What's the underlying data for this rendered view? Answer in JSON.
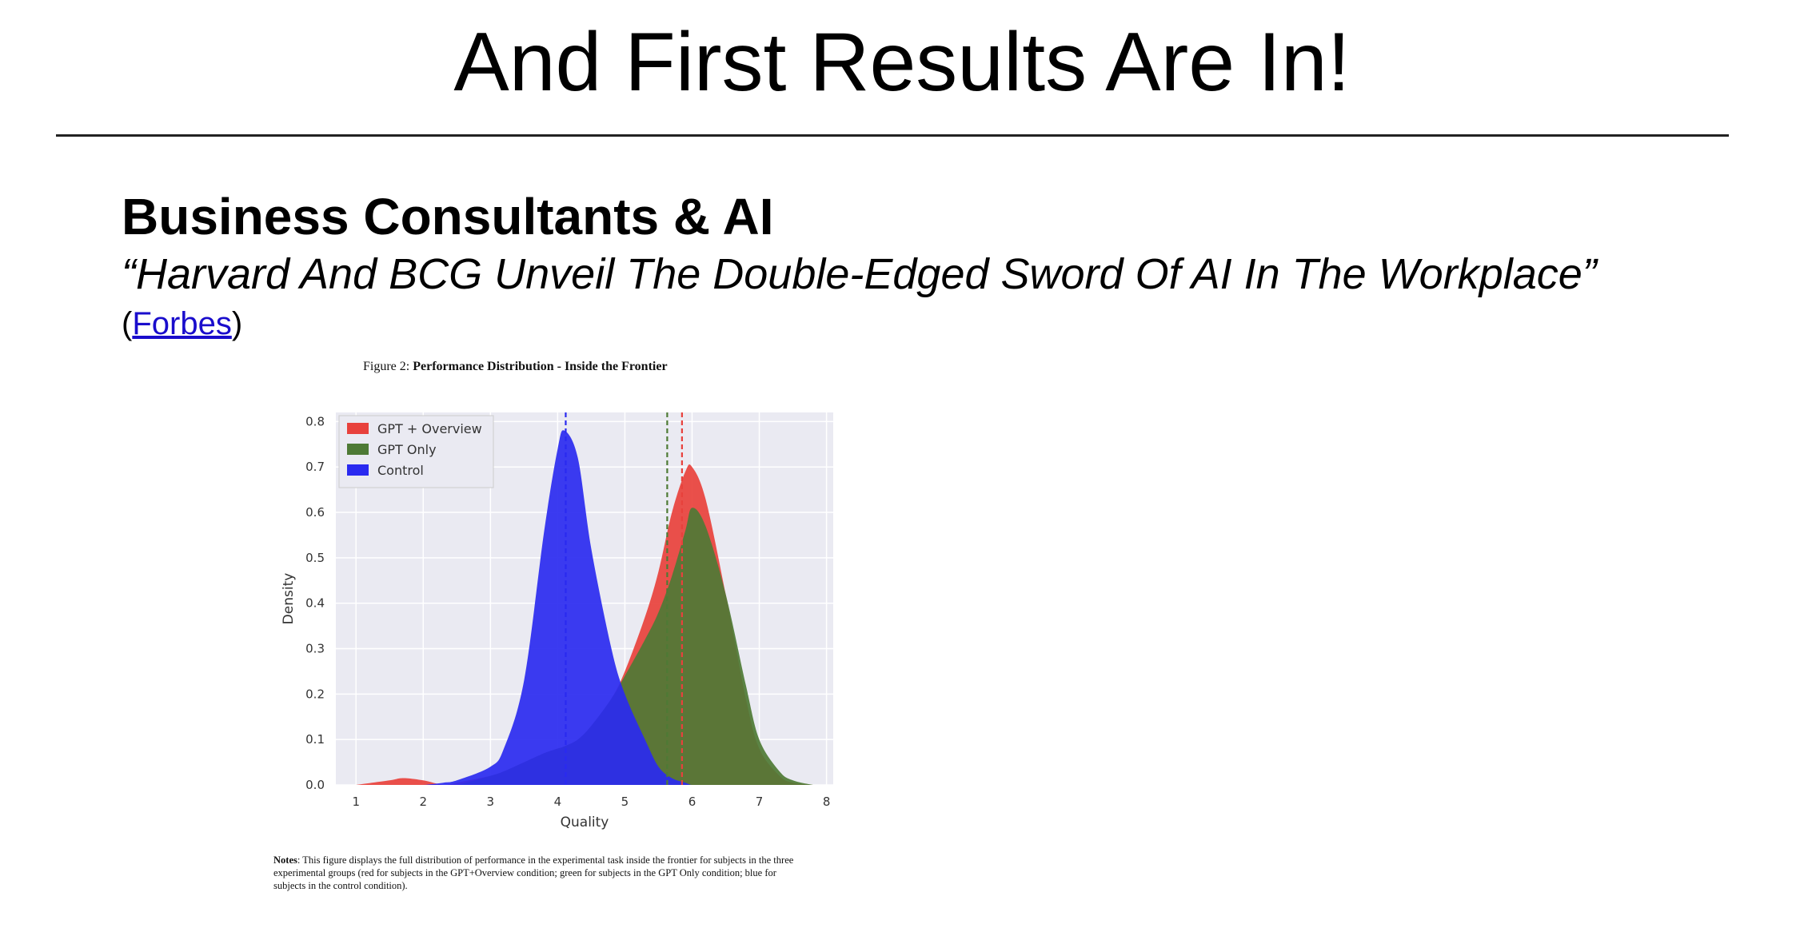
{
  "slide": {
    "title": "And First Results Are In!",
    "heading": "Business Consultants & AI",
    "quote": "“Harvard And BCG Unveil The Double-Edged Sword Of AI In The Workplace”",
    "source_open": "(",
    "source_link": "Forbes",
    "source_close": ")"
  },
  "figure": {
    "caption_prefix": "Figure 2: ",
    "caption_title": "Performance Distribution - Inside the Frontier",
    "notes_label": "Notes",
    "notes_text": ": This figure displays the full distribution of performance in the experimental task inside the frontier for subjects in the three experimental groups (red for subjects in the GPT+Overview condition; green for subjects in the GPT Only condition; blue for subjects in the control condition)."
  },
  "chart_data": {
    "type": "area",
    "title": "",
    "xlabel": "Quality",
    "ylabel": "Density",
    "xlim": [
      0.7,
      8.1
    ],
    "ylim": [
      0,
      0.82
    ],
    "xticks": [
      "1",
      "2",
      "3",
      "4",
      "5",
      "6",
      "7",
      "8"
    ],
    "yticks": [
      "0.0",
      "0.1",
      "0.2",
      "0.3",
      "0.4",
      "0.5",
      "0.6",
      "0.7",
      "0.8"
    ],
    "grid": true,
    "legend_position": "top-left",
    "x": [
      1.0,
      1.5,
      1.7,
      2.0,
      2.3,
      2.5,
      3.0,
      3.2,
      3.5,
      3.8,
      4.0,
      4.1,
      4.3,
      4.5,
      4.8,
      5.0,
      5.3,
      5.5,
      5.7,
      5.9,
      6.0,
      6.2,
      6.5,
      6.8,
      7.0,
      7.3,
      7.5,
      7.8
    ],
    "series": [
      {
        "name": "GPT + Overview",
        "color": "#e8413c",
        "mean": 5.85,
        "values": [
          0.0,
          0.01,
          0.015,
          0.01,
          0.0,
          0.005,
          0.02,
          0.03,
          0.05,
          0.07,
          0.08,
          0.085,
          0.1,
          0.13,
          0.19,
          0.25,
          0.37,
          0.47,
          0.6,
          0.69,
          0.7,
          0.63,
          0.42,
          0.19,
          0.08,
          0.02,
          0.005,
          0.0
        ]
      },
      {
        "name": "GPT Only",
        "color": "#4e7a35",
        "mean": 5.63,
        "values": [
          0.0,
          0.0,
          0.0,
          0.0,
          0.0,
          0.0,
          0.02,
          0.03,
          0.05,
          0.07,
          0.08,
          0.085,
          0.1,
          0.13,
          0.19,
          0.24,
          0.32,
          0.38,
          0.46,
          0.56,
          0.61,
          0.57,
          0.42,
          0.22,
          0.1,
          0.03,
          0.01,
          0.0
        ]
      },
      {
        "name": "Control",
        "color": "#2a2af0",
        "mean": 4.12,
        "values": [
          0.0,
          0.0,
          0.0,
          0.0,
          0.005,
          0.01,
          0.04,
          0.08,
          0.23,
          0.56,
          0.74,
          0.78,
          0.72,
          0.52,
          0.3,
          0.2,
          0.1,
          0.04,
          0.015,
          0.005,
          0.0,
          0.0,
          0.0,
          0.0,
          0.0,
          0.0,
          0.0,
          0.0
        ]
      }
    ]
  }
}
